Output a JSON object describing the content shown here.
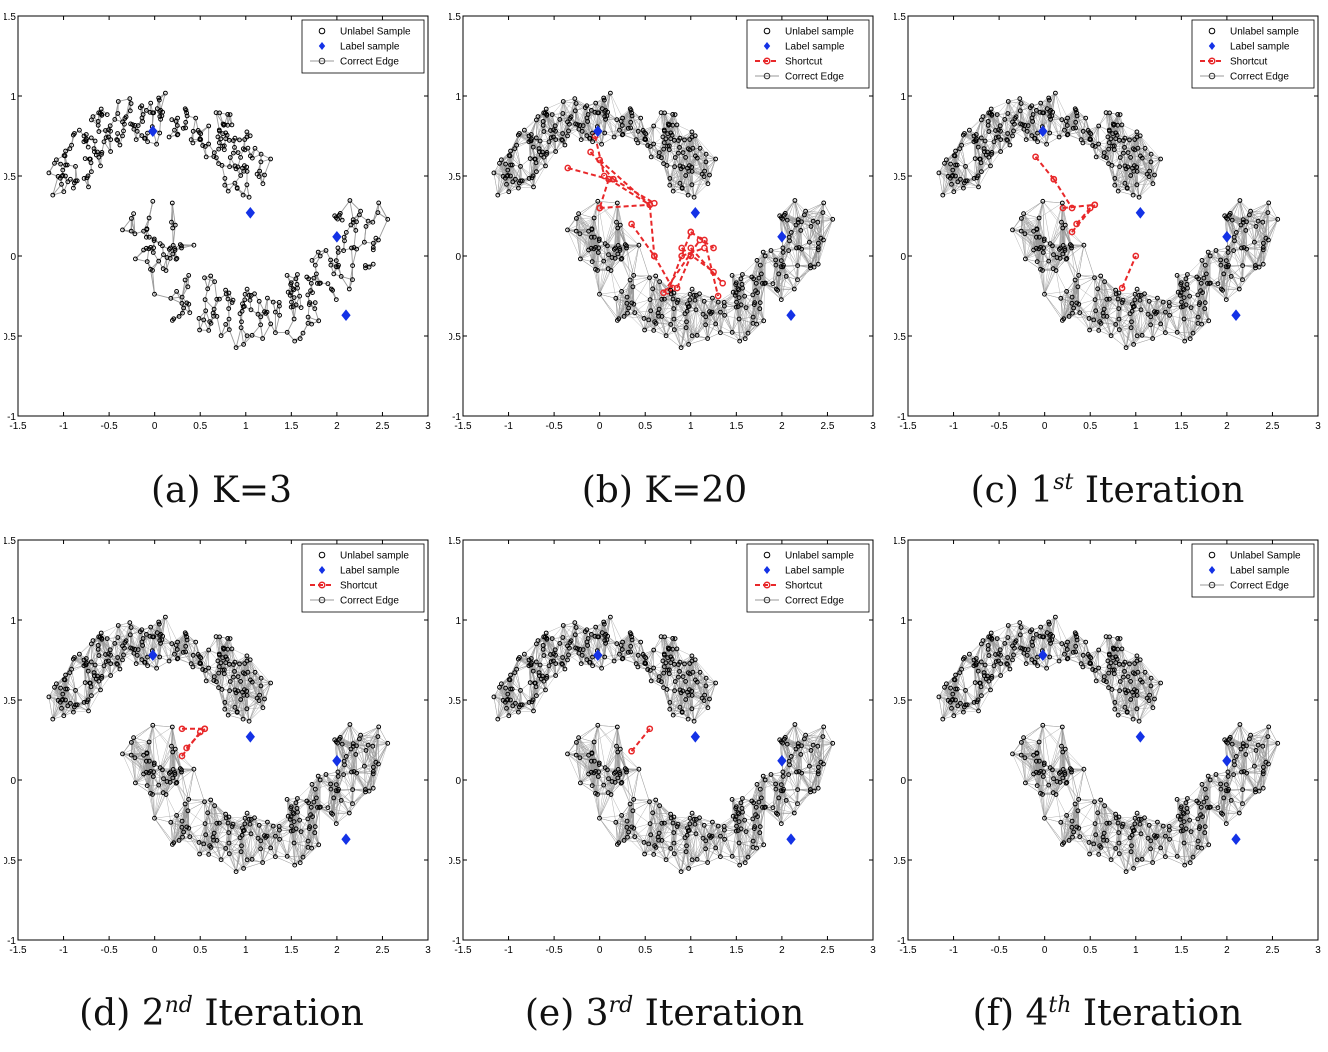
{
  "chart_data": [
    {
      "type": "scatter",
      "caption": {
        "prefix": "(a) K=3",
        "sup": "",
        "suffix": ""
      },
      "xlim": [
        -1.5,
        3
      ],
      "ylim": [
        -1,
        1.5
      ],
      "xticks": [
        "-1.5",
        "-1",
        "-0.5",
        "0",
        "0.5",
        "1",
        "1.5",
        "2",
        "2.5",
        "3"
      ],
      "yticks": [
        "-1",
        "-0.5",
        "0",
        "0.5",
        "1",
        "1.5"
      ],
      "legend": [
        "Unlabel Sample",
        "Label sample",
        "Correct Edge"
      ],
      "legend_placement": "top-right",
      "edge_density": "low",
      "shortcut_edges": [],
      "label_samples": [
        [
          -0.02,
          0.78
        ],
        [
          1.05,
          0.27
        ],
        [
          2.0,
          0.12
        ],
        [
          2.1,
          -0.37
        ]
      ]
    },
    {
      "type": "scatter",
      "caption": {
        "prefix": "(b) K=20",
        "sup": "",
        "suffix": ""
      },
      "xlim": [
        -1.5,
        3
      ],
      "ylim": [
        -1,
        1.5
      ],
      "xticks": [
        "-1.5",
        "-1",
        "-0.5",
        "0",
        "0.5",
        "1",
        "1.5",
        "2",
        "2.5",
        "3"
      ],
      "yticks": [
        "-1",
        "-0.5",
        "0",
        "0.5",
        "1",
        "1.5"
      ],
      "legend": [
        "Unlabel sample",
        "Label sample",
        "Shortcut",
        "Correct Edge"
      ],
      "legend_placement": "top-right",
      "edge_density": "high",
      "shortcut_edges": [
        [
          [
            -0.35,
            0.55
          ],
          [
            0.1,
            0.48
          ]
        ],
        [
          [
            -0.1,
            0.65
          ],
          [
            0.15,
            0.48
          ]
        ],
        [
          [
            -0.05,
            0.75
          ],
          [
            0.05,
            0.5
          ]
        ],
        [
          [
            0.0,
            0.6
          ],
          [
            0.55,
            0.32
          ]
        ],
        [
          [
            0.1,
            0.48
          ],
          [
            0.55,
            0.32
          ]
        ],
        [
          [
            0.1,
            0.48
          ],
          [
            0.0,
            0.3
          ]
        ],
        [
          [
            0.15,
            0.48
          ],
          [
            0.6,
            0.33
          ]
        ],
        [
          [
            0.0,
            0.3
          ],
          [
            0.55,
            0.32
          ]
        ],
        [
          [
            0.35,
            0.2
          ],
          [
            0.6,
            0.0
          ]
        ],
        [
          [
            0.55,
            0.32
          ],
          [
            0.6,
            0.0
          ]
        ],
        [
          [
            0.6,
            0.0
          ],
          [
            0.8,
            -0.2
          ]
        ],
        [
          [
            0.85,
            -0.2
          ],
          [
            1.0,
            0.0
          ]
        ],
        [
          [
            0.9,
            0.0
          ],
          [
            1.15,
            0.05
          ]
        ],
        [
          [
            1.0,
            0.05
          ],
          [
            1.35,
            -0.17
          ]
        ],
        [
          [
            1.15,
            0.1
          ],
          [
            1.3,
            -0.25
          ]
        ],
        [
          [
            0.9,
            0.05
          ],
          [
            1.25,
            -0.1
          ]
        ],
        [
          [
            0.75,
            -0.22
          ],
          [
            1.0,
            0.15
          ]
        ],
        [
          [
            0.7,
            -0.23
          ],
          [
            1.1,
            0.1
          ]
        ],
        [
          [
            1.0,
            0.15
          ],
          [
            1.25,
            0.05
          ]
        ]
      ],
      "label_samples": [
        [
          -0.02,
          0.78
        ],
        [
          1.05,
          0.27
        ],
        [
          2.0,
          0.12
        ],
        [
          2.1,
          -0.37
        ]
      ]
    },
    {
      "type": "scatter",
      "caption": {
        "prefix": "(c) 1",
        "sup": "st",
        "suffix": " Iteration"
      },
      "xlim": [
        -1.5,
        3
      ],
      "ylim": [
        -1,
        1.5
      ],
      "xticks": [
        "-1.5",
        "-1",
        "-0.5",
        "0",
        "0.5",
        "1",
        "1.5",
        "2",
        "2.5",
        "3"
      ],
      "yticks": [
        "-1",
        "-0.5",
        "0",
        "0.5",
        "1",
        "1.5"
      ],
      "legend": [
        "Unlabel sample",
        "Label sample",
        "Shortcut",
        "Correct Edge"
      ],
      "legend_placement": "top-right",
      "edge_density": "high",
      "shortcut_edges": [
        [
          [
            -0.1,
            0.62
          ],
          [
            0.1,
            0.48
          ]
        ],
        [
          [
            0.1,
            0.48
          ],
          [
            0.3,
            0.3
          ]
        ],
        [
          [
            0.2,
            0.3
          ],
          [
            0.55,
            0.32
          ]
        ],
        [
          [
            0.3,
            0.15
          ],
          [
            0.55,
            0.32
          ]
        ],
        [
          [
            0.35,
            0.2
          ],
          [
            0.5,
            0.3
          ]
        ],
        [
          [
            0.85,
            -0.2
          ],
          [
            1.0,
            0.0
          ]
        ]
      ],
      "label_samples": [
        [
          -0.02,
          0.78
        ],
        [
          1.05,
          0.27
        ],
        [
          2.0,
          0.12
        ],
        [
          2.1,
          -0.37
        ]
      ]
    },
    {
      "type": "scatter",
      "caption": {
        "prefix": "(d) 2",
        "sup": "nd",
        "suffix": " Iteration"
      },
      "xlim": [
        -1.5,
        3
      ],
      "ylim": [
        -1,
        1.5
      ],
      "xticks": [
        "-1.5",
        "-1",
        "-0.5",
        "0",
        "0.5",
        "1",
        "1.5",
        "2",
        "2.5",
        "3"
      ],
      "yticks": [
        "-1",
        "-0.5",
        "0",
        "0.5",
        "1",
        "1.5"
      ],
      "legend": [
        "Unlabel sample",
        "Label sample",
        "Shortcut",
        "Correct Edge"
      ],
      "legend_placement": "top-right",
      "edge_density": "high",
      "shortcut_edges": [
        [
          [
            0.3,
            0.32
          ],
          [
            0.55,
            0.32
          ]
        ],
        [
          [
            0.35,
            0.2
          ],
          [
            0.55,
            0.32
          ]
        ],
        [
          [
            0.3,
            0.15
          ],
          [
            0.5,
            0.3
          ]
        ]
      ],
      "label_samples": [
        [
          -0.02,
          0.78
        ],
        [
          1.05,
          0.27
        ],
        [
          2.0,
          0.12
        ],
        [
          2.1,
          -0.37
        ]
      ]
    },
    {
      "type": "scatter",
      "caption": {
        "prefix": "(e) 3",
        "sup": "rd",
        "suffix": " Iteration"
      },
      "xlim": [
        -1.5,
        3
      ],
      "ylim": [
        -1,
        1.5
      ],
      "xticks": [
        "-1.5",
        "-1",
        "-0.5",
        "0",
        "0.5",
        "1",
        "1.5",
        "2",
        "2.5",
        "3"
      ],
      "yticks": [
        "-1",
        "-0.5",
        "0",
        "0.5",
        "1",
        "1.5"
      ],
      "legend": [
        "Unlabel sample",
        "Label sample",
        "Shortcut",
        "Correct Edge"
      ],
      "legend_placement": "top-right",
      "edge_density": "high",
      "shortcut_edges": [
        [
          [
            0.35,
            0.18
          ],
          [
            0.55,
            0.32
          ]
        ]
      ],
      "label_samples": [
        [
          -0.02,
          0.78
        ],
        [
          1.05,
          0.27
        ],
        [
          2.0,
          0.12
        ],
        [
          2.1,
          -0.37
        ]
      ]
    },
    {
      "type": "scatter",
      "caption": {
        "prefix": "(f) 4",
        "sup": "th",
        "suffix": " Iteration"
      },
      "xlim": [
        -1.5,
        3
      ],
      "ylim": [
        -1,
        1.5
      ],
      "xticks": [
        "-1.5",
        "-1",
        "-0.5",
        "0",
        "0.5",
        "1",
        "1.5",
        "2",
        "2.5",
        "3"
      ],
      "yticks": [
        "-1",
        "-0.5",
        "0",
        "0.5",
        "1",
        "1.5"
      ],
      "legend": [
        "Unlabel Sample",
        "Label sample",
        "Correct Edge"
      ],
      "legend_placement": "top-right",
      "edge_density": "high",
      "shortcut_edges": [],
      "label_samples": [
        [
          -0.02,
          0.78
        ],
        [
          1.05,
          0.27
        ],
        [
          2.0,
          0.12
        ],
        [
          2.1,
          -0.37
        ]
      ]
    }
  ],
  "colors": {
    "unlabel_sample": "#000000",
    "label_sample": "#1432e6",
    "shortcut": "#e8282a",
    "correct_edge": "#999999"
  }
}
